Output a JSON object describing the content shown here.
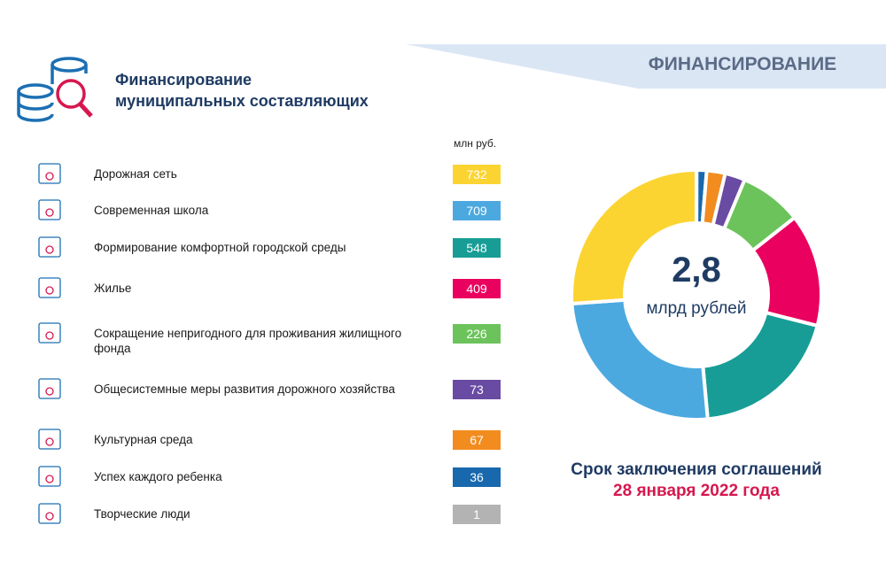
{
  "header": {
    "section": "ФИНАНСИРОВАНИЕ",
    "title_lines": [
      "Финансирование",
      "муниципальных составляющих"
    ]
  },
  "chart_data": {
    "type": "donut",
    "unit": "млн руб.",
    "categories": [
      "Дорожная сеть",
      "Современная школа",
      "Формирование комфортной городской среды",
      "Жилье",
      "Сокращение непригодного для проживания жилищного фонда",
      "Общесистемные меры развития дорожного хозяйства",
      "Культурная среда",
      "Успех каждого ребенка",
      "Творческие люди"
    ],
    "values": [
      732,
      709,
      548,
      409,
      226,
      73,
      67,
      36,
      1
    ],
    "colors": [
      "#fbd431",
      "#4ca9e0",
      "#179d96",
      "#ea005f",
      "#6cc35b",
      "#6a4ba3",
      "#f28c1f",
      "#1868ae",
      "#b3b3b3"
    ],
    "center_value": "2,8",
    "center_unit": "млрд рублей"
  },
  "footer": {
    "line1": "Срок заключения соглашений",
    "line2": "28 января 2022 года"
  }
}
